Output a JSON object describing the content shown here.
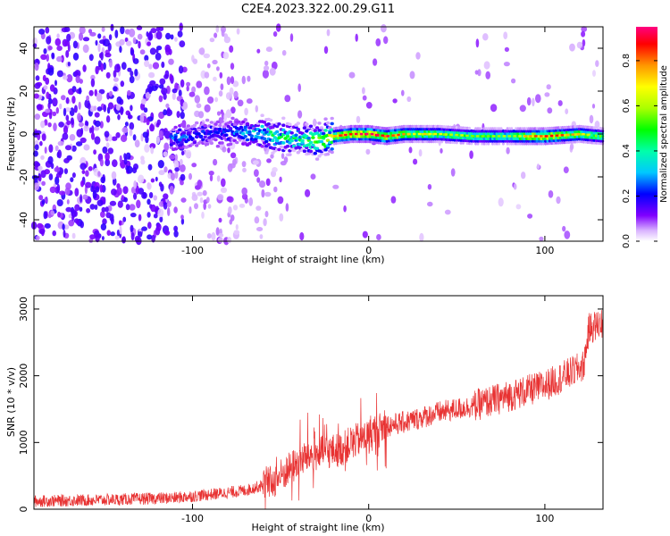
{
  "title": "C2E4.2023.322.00.29.G11",
  "chart_data": [
    {
      "type": "heatmap",
      "xlabel": "Height of straight line (km)",
      "ylabel": "Frequency (Hz)",
      "xlim": [
        -190,
        133
      ],
      "ylim": [
        -50,
        50
      ],
      "x_ticks": [
        -100,
        0,
        100
      ],
      "y_ticks": [
        -40,
        -20,
        0,
        20,
        40
      ],
      "colorbar": {
        "label": "Normalized spectral amplitude",
        "range": [
          0,
          0.95
        ],
        "ticks": [
          0.0,
          0.2,
          0.4,
          0.6,
          0.8
        ]
      },
      "ridge": {
        "description_values": {
          "x": [
            -110,
            -95,
            -75,
            -60,
            -45,
            -30,
            -20,
            -10,
            0,
            10,
            20,
            40,
            60,
            80,
            100,
            120,
            133
          ],
          "freq": [
            -2,
            0,
            1,
            0,
            -2,
            -3,
            -1,
            0,
            0,
            -1,
            0,
            0,
            -1,
            -1,
            -1,
            0,
            -1
          ],
          "peak_amplitude": [
            0.3,
            0.25,
            0.3,
            0.45,
            0.5,
            0.55,
            0.75,
            0.85,
            0.9,
            0.85,
            0.7,
            0.6,
            0.55,
            0.55,
            0.85,
            0.65,
            0.55
          ]
        }
      }
    },
    {
      "type": "line",
      "xlabel": "Height of straight line (km)",
      "ylabel": "SNR (10 * v/v)",
      "xlim": [
        -190,
        133
      ],
      "ylim": [
        0,
        3200
      ],
      "x_ticks": [
        -100,
        0,
        100
      ],
      "y_ticks": [
        0,
        1000,
        2000,
        3000
      ],
      "series": [
        {
          "color": "#e83232",
          "x": [
            -190,
            -150,
            -110,
            -90,
            -70,
            -55,
            -45,
            -35,
            -25,
            -15,
            -10,
            -5,
            0,
            10,
            20,
            40,
            60,
            80,
            100,
            115,
            122,
            125,
            133
          ],
          "y": [
            120,
            140,
            170,
            220,
            280,
            400,
            600,
            800,
            850,
            900,
            1000,
            1050,
            1100,
            1250,
            1300,
            1450,
            1550,
            1700,
            1850,
            2050,
            2150,
            2700,
            2800
          ]
        }
      ]
    }
  ]
}
